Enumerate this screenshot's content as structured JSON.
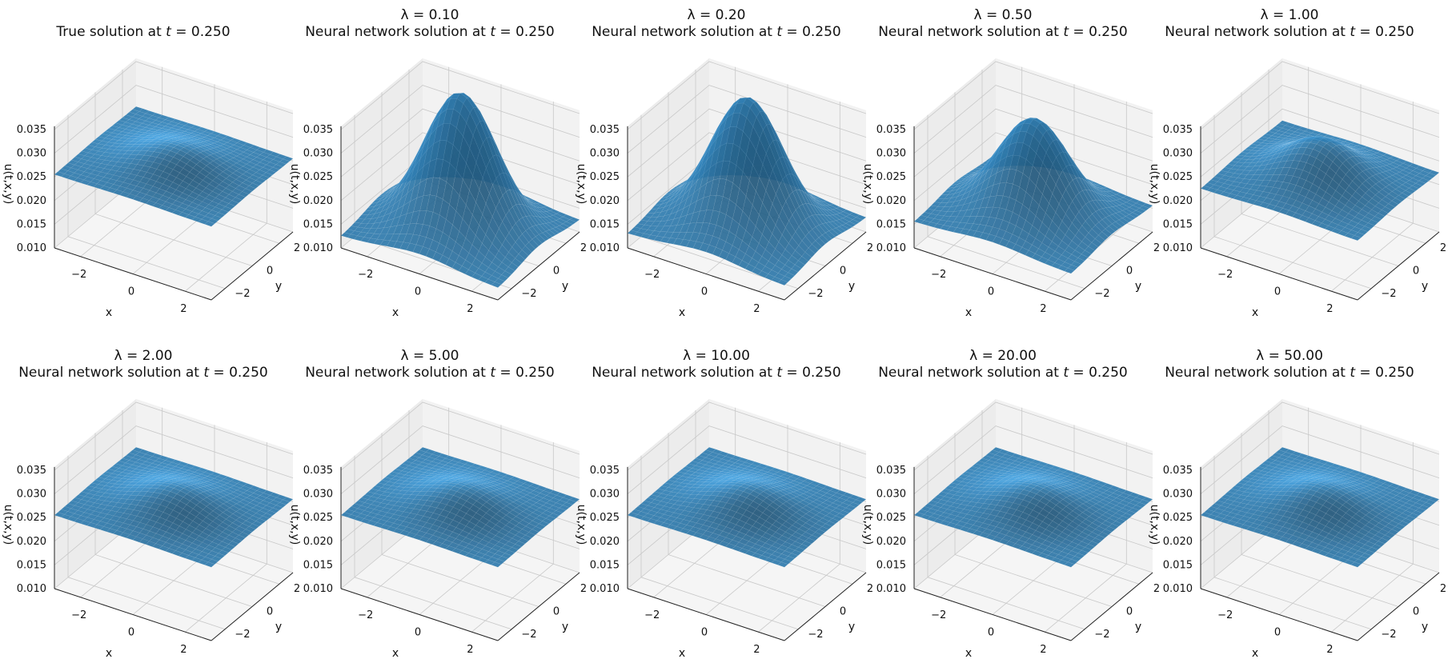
{
  "figure": {
    "tick_values_z": [
      "0.035",
      "0.030",
      "0.025",
      "0.020",
      "0.015",
      "0.010"
    ],
    "tick_values_x": [
      "−2",
      "0",
      "2"
    ],
    "tick_values_y": [
      "2",
      "0",
      "−2"
    ],
    "xlabel": "x",
    "ylabel": "y",
    "zlabel": "u(t,x,y)",
    "surface_color": "#2a6d9a",
    "pane_color": "#ececec",
    "grid_color": "#c8c8c8"
  },
  "chart_data": [
    {
      "type": "surface3d",
      "line1": "",
      "line2": "True solution at ",
      "tval": "0.250",
      "peak": 0.0295,
      "edge": 0.0255,
      "zlim": [
        0.01,
        0.035
      ],
      "xlim": [
        -3,
        3
      ],
      "ylim": [
        -3,
        3
      ]
    },
    {
      "type": "surface3d",
      "line1": "λ = 0.10",
      "line2": "Neural network solution at ",
      "tval": "0.250",
      "peak": 0.041,
      "edge": 0.0125,
      "zlim": [
        0.01,
        0.035
      ],
      "xlim": [
        -3,
        3
      ],
      "ylim": [
        -3,
        3
      ]
    },
    {
      "type": "surface3d",
      "line1": "λ = 0.20",
      "line2": "Neural network solution at ",
      "tval": "0.250",
      "peak": 0.04,
      "edge": 0.013,
      "zlim": [
        0.01,
        0.035
      ],
      "xlim": [
        -3,
        3
      ],
      "ylim": [
        -3,
        3
      ]
    },
    {
      "type": "surface3d",
      "line1": "λ = 0.50",
      "line2": "Neural network solution at ",
      "tval": "0.250",
      "peak": 0.0355,
      "edge": 0.0155,
      "zlim": [
        0.01,
        0.035
      ],
      "xlim": [
        -3,
        3
      ],
      "ylim": [
        -3,
        3
      ]
    },
    {
      "type": "surface3d",
      "line1": "λ = 1.00",
      "line2": "Neural network solution at ",
      "tval": "0.250",
      "peak": 0.031,
      "edge": 0.0225,
      "zlim": [
        0.01,
        0.035
      ],
      "xlim": [
        -3,
        3
      ],
      "ylim": [
        -3,
        3
      ]
    },
    {
      "type": "surface3d",
      "line1": "λ = 2.00",
      "line2": "Neural network solution at ",
      "tval": "0.250",
      "peak": 0.0295,
      "edge": 0.0255,
      "zlim": [
        0.01,
        0.035
      ],
      "xlim": [
        -3,
        3
      ],
      "ylim": [
        -3,
        3
      ]
    },
    {
      "type": "surface3d",
      "line1": "λ = 5.00",
      "line2": "Neural network solution at ",
      "tval": "0.250",
      "peak": 0.0295,
      "edge": 0.0255,
      "zlim": [
        0.01,
        0.035
      ],
      "xlim": [
        -3,
        3
      ],
      "ylim": [
        -3,
        3
      ]
    },
    {
      "type": "surface3d",
      "line1": "λ = 10.00",
      "line2": "Neural network solution at ",
      "tval": "0.250",
      "peak": 0.0295,
      "edge": 0.0255,
      "zlim": [
        0.01,
        0.035
      ],
      "xlim": [
        -3,
        3
      ],
      "ylim": [
        -3,
        3
      ]
    },
    {
      "type": "surface3d",
      "line1": "λ = 20.00",
      "line2": "Neural network solution at ",
      "tval": "0.250",
      "peak": 0.0295,
      "edge": 0.0255,
      "zlim": [
        0.01,
        0.035
      ],
      "xlim": [
        -3,
        3
      ],
      "ylim": [
        -3,
        3
      ]
    },
    {
      "type": "surface3d",
      "line1": "λ = 50.00",
      "line2": "Neural network solution at ",
      "tval": "0.250",
      "peak": 0.0295,
      "edge": 0.0255,
      "zlim": [
        0.01,
        0.035
      ],
      "xlim": [
        -3,
        3
      ],
      "ylim": [
        -3,
        3
      ]
    }
  ]
}
